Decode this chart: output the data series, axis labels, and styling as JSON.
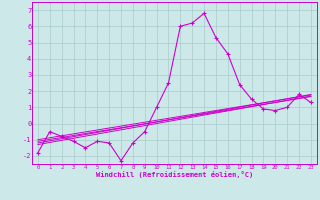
{
  "x": [
    0,
    1,
    2,
    3,
    4,
    5,
    6,
    7,
    8,
    9,
    10,
    11,
    12,
    13,
    14,
    15,
    16,
    17,
    18,
    19,
    20,
    21,
    22,
    23
  ],
  "windchill": [
    -1.8,
    -0.5,
    -0.8,
    -1.1,
    -1.5,
    -1.1,
    -1.2,
    -2.3,
    -1.2,
    -0.5,
    1.0,
    2.5,
    6.0,
    6.2,
    6.8,
    5.3,
    4.3,
    2.4,
    1.5,
    0.9,
    0.8,
    1.0,
    1.8,
    1.3
  ],
  "line1": [
    -1.0,
    -0.88,
    -0.76,
    -0.64,
    -0.52,
    -0.4,
    -0.28,
    -0.16,
    -0.04,
    0.08,
    0.2,
    0.32,
    0.44,
    0.56,
    0.68,
    0.8,
    0.92,
    1.04,
    1.16,
    1.28,
    1.4,
    1.52,
    1.64,
    1.76
  ],
  "line2": [
    -1.1,
    -0.98,
    -0.86,
    -0.74,
    -0.62,
    -0.5,
    -0.38,
    -0.26,
    -0.14,
    -0.02,
    0.1,
    0.22,
    0.34,
    0.46,
    0.58,
    0.7,
    0.82,
    0.94,
    1.06,
    1.18,
    1.3,
    1.42,
    1.54,
    1.66
  ],
  "line3": [
    -1.2,
    -1.07,
    -0.94,
    -0.81,
    -0.68,
    -0.55,
    -0.42,
    -0.29,
    -0.16,
    -0.03,
    0.1,
    0.23,
    0.36,
    0.49,
    0.62,
    0.75,
    0.88,
    1.01,
    1.14,
    1.27,
    1.4,
    1.53,
    1.66,
    1.79
  ],
  "line4": [
    -1.3,
    -1.17,
    -1.04,
    -0.91,
    -0.78,
    -0.65,
    -0.52,
    -0.39,
    -0.26,
    -0.13,
    0.0,
    0.13,
    0.26,
    0.39,
    0.52,
    0.65,
    0.78,
    0.91,
    1.04,
    1.17,
    1.3,
    1.43,
    1.56,
    1.69
  ],
  "bg_color": "#cce8e8",
  "grid_color": "#aacccc",
  "line_color": "#cc00cc",
  "xlabel": "Windchill (Refroidissement éolien,°C)",
  "xlim": [
    -0.5,
    23.5
  ],
  "ylim": [
    -2.5,
    7.5
  ],
  "yticks": [
    -2,
    -1,
    0,
    1,
    2,
    3,
    4,
    5,
    6,
    7
  ],
  "xticks": [
    0,
    1,
    2,
    3,
    4,
    5,
    6,
    7,
    8,
    9,
    10,
    11,
    12,
    13,
    14,
    15,
    16,
    17,
    18,
    19,
    20,
    21,
    22,
    23
  ]
}
